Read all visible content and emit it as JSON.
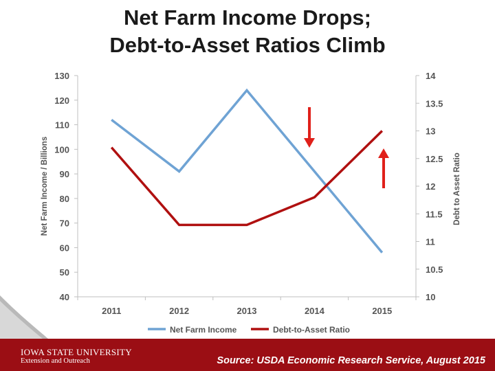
{
  "slide": {
    "title_line1": "Net Farm Income Drops;",
    "title_line2": "Debt-to-Asset Ratios Climb",
    "source": "Source:  USDA Economic Research Service, August 2015",
    "logo_name": "IOWA STATE UNIVERSITY",
    "logo_sub": "Extension and Outreach"
  },
  "chart_data": {
    "type": "line",
    "title": "",
    "x": [
      "2011",
      "2012",
      "2013",
      "2014",
      "2015"
    ],
    "ylabel": "Net Farm Income / Billions",
    "ylabel_right": "Debt to Asset Ratio",
    "ylim": [
      40,
      130
    ],
    "y2lim": [
      10,
      14
    ],
    "yticks": [
      "130",
      "120",
      "110",
      "100",
      "90",
      "80",
      "70",
      "60",
      "50",
      "40"
    ],
    "y2ticks": [
      "14",
      "13.5",
      "13",
      "12.5",
      "12",
      "11.5",
      "11",
      "10.5",
      "10"
    ],
    "grid": false,
    "legend_position": "bottom",
    "series": [
      {
        "name": "Net Farm Income",
        "axis": "left",
        "color": "#6fa3d4",
        "values": [
          112,
          91,
          124,
          91,
          58
        ]
      },
      {
        "name": "Debt-to-Asset Ratio",
        "axis": "right",
        "color": "#b01010",
        "values": [
          12.7,
          11.3,
          11.3,
          11.8,
          13.0
        ]
      }
    ],
    "annotations": [
      {
        "type": "arrow-down",
        "color": "#e0201a",
        "near": "2014"
      },
      {
        "type": "arrow-up",
        "color": "#e0201a",
        "near": "2015"
      }
    ]
  }
}
